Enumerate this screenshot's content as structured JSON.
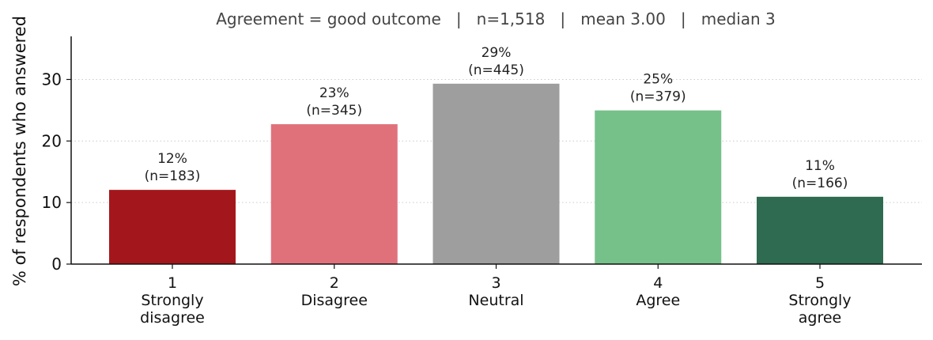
{
  "chart_data": {
    "type": "bar",
    "subtitle": "Agreement = good outcome   |   n=1,518   |   mean 3.00   |   median 3",
    "xlabel": "",
    "ylabel": "% of respondents who answered",
    "ylim": [
      0,
      37
    ],
    "yticks": [
      0,
      10,
      20,
      30
    ],
    "grid": "horizontal dotted",
    "categories": [
      [
        "1",
        "Strongly",
        "disagree"
      ],
      [
        "2",
        "Disagree"
      ],
      [
        "3",
        "Neutral"
      ],
      [
        "4",
        "Agree"
      ],
      [
        "5",
        "Strongly",
        "agree"
      ]
    ],
    "values": [
      12.06,
      22.73,
      29.31,
      24.97,
      10.94
    ],
    "labels": [
      [
        "12%",
        "(n=183)"
      ],
      [
        "23%",
        "(n=345)"
      ],
      [
        "29%",
        "(n=445)"
      ],
      [
        "25%",
        "(n=379)"
      ],
      [
        "11%",
        "(n=166)"
      ]
    ],
    "colors": [
      "#a3171c",
      "#e0717b",
      "#9e9e9e",
      "#76c189",
      "#2e6b50"
    ]
  }
}
